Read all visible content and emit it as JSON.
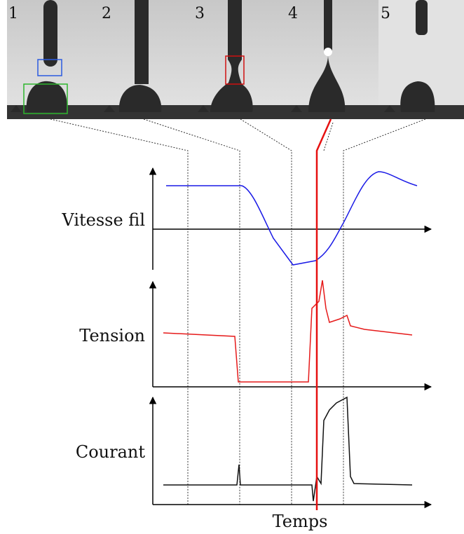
{
  "panels": [
    "1",
    "2",
    "3",
    "4",
    "5"
  ],
  "signals": [
    {
      "label": "Vitesse fil"
    },
    {
      "label": "Tension"
    },
    {
      "label": "Courant"
    }
  ],
  "x_axis_label": "Temps"
}
